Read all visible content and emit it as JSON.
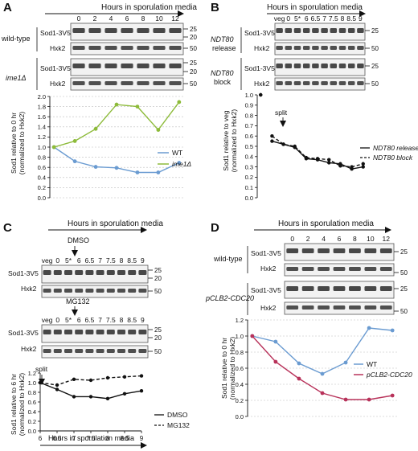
{
  "panels": [
    {
      "letter": "A",
      "header": "Hours in sporulation media",
      "lanes": [
        "0",
        "2",
        "4",
        "6",
        "8",
        "10",
        "12"
      ],
      "groups": [
        "wild-type",
        "ime1Δ"
      ],
      "blot_labels": [
        "Sod1-3V5",
        "Hxk2"
      ],
      "markers": [
        "25",
        "20",
        "50"
      ],
      "ylabel1": "Sod1 relative to 0 hr",
      "ylabel2": "(normalized to Hxk2)",
      "yticks": [
        "0.0",
        "0.2",
        "0.4",
        "0.6",
        "0.8",
        "1.0",
        "1.2",
        "1.4",
        "1.6",
        "1.8",
        "2.0"
      ],
      "legend": [
        "WT",
        "ime1Δ"
      ]
    },
    {
      "letter": "B",
      "header": "Hours in sporulation media",
      "lanes": [
        "veg",
        "0",
        "5*",
        "6",
        "6.5",
        "7",
        "7.5",
        "8",
        "8.5",
        "9"
      ],
      "groups": [
        "NDT80 release",
        "NDT80 block"
      ],
      "blot_labels": [
        "Sod1-3V5",
        "Hxk2"
      ],
      "markers": [
        "25",
        "50"
      ],
      "ylabel1": "Sod1 relative to veg",
      "ylabel2": "(normalized to Hxk2)",
      "yticks": [
        "0.0",
        "0.1",
        "0.2",
        "0.3",
        "0.4",
        "0.5",
        "0.6",
        "0.7",
        "0.8",
        "0.9",
        "1.0"
      ],
      "annotation": "split",
      "legend": [
        "NDT80 release",
        "NDT80 block"
      ]
    },
    {
      "letter": "C",
      "header": "Hours in sporulation media",
      "lanes": [
        "veg",
        "0",
        "5*",
        "6",
        "6.5",
        "7",
        "7.5",
        "8",
        "8.5",
        "9"
      ],
      "treatments": [
        "DMSO",
        "MG132"
      ],
      "blot_labels": [
        "Sod1-3V5",
        "Hxk2"
      ],
      "markers": [
        "25",
        "20",
        "50"
      ],
      "ylabel1": "Sod1 relative to 6 hr",
      "ylabel2": "(normalized to Hxk2)",
      "yticks": [
        "0.0",
        "0.2",
        "0.4",
        "0.6",
        "0.8",
        "1.0",
        "1.2"
      ],
      "xticks": [
        "6",
        "6.5",
        "7",
        "7.5",
        "8",
        "8.5",
        "9"
      ],
      "xlabel": "Hours in sporulation media",
      "annotation": "split",
      "legend": [
        "DMSO",
        "MG132"
      ]
    },
    {
      "letter": "D",
      "header": "Hours in sporulation media",
      "lanes": [
        "0",
        "2",
        "4",
        "6",
        "8",
        "10",
        "12"
      ],
      "groups": [
        "wild-type",
        "pCLB2-CDC20"
      ],
      "blot_labels": [
        "Sod1-3V5",
        "Hxk2"
      ],
      "markers": [
        "25",
        "50"
      ],
      "ylabel1": "Sod1 relative to 0 hr",
      "ylabel2": "(normalized to Hxk2)",
      "yticks": [
        "0.0",
        "0.2",
        "0.4",
        "0.6",
        "0.8",
        "1.0",
        "1.2"
      ],
      "legend": [
        "WT",
        "pCLB2-CDC20"
      ]
    }
  ],
  "chart_data": [
    {
      "type": "line",
      "panel": "A",
      "x": [
        0,
        2,
        4,
        6,
        8,
        10,
        12
      ],
      "series": [
        {
          "name": "WT",
          "values": [
            1.0,
            0.72,
            0.61,
            0.59,
            0.5,
            0.5,
            0.69
          ],
          "color": "#6a9bd1"
        },
        {
          "name": "ime1Δ",
          "values": [
            1.0,
            1.12,
            1.36,
            1.84,
            1.8,
            1.34,
            1.89
          ],
          "color": "#8dbb3a"
        }
      ],
      "ylim": [
        0,
        2.0
      ]
    },
    {
      "type": "line",
      "panel": "B",
      "categories": [
        "veg",
        "0",
        "5*",
        "6",
        "6.5",
        "7",
        "7.5",
        "8",
        "8.5",
        "9"
      ],
      "series": [
        {
          "name": "NDT80 release",
          "values": [
            1.0,
            0.55,
            0.52,
            0.49,
            0.38,
            0.37,
            0.34,
            0.33,
            0.28,
            0.3
          ],
          "style": "solid"
        },
        {
          "name": "NDT80 block",
          "values": [
            1.0,
            0.6,
            0.52,
            0.5,
            0.39,
            0.38,
            0.37,
            0.31,
            0.3,
            0.33
          ],
          "style": "dashed"
        }
      ],
      "ylim": [
        0,
        1.0
      ]
    },
    {
      "type": "line",
      "panel": "C",
      "x": [
        6,
        6.5,
        7,
        7.5,
        8,
        8.5,
        9
      ],
      "series": [
        {
          "name": "DMSO",
          "values": [
            1.0,
            0.86,
            0.71,
            0.71,
            0.67,
            0.77,
            0.83
          ],
          "style": "solid"
        },
        {
          "name": "MG132",
          "values": [
            1.0,
            0.95,
            1.07,
            1.05,
            1.1,
            1.12,
            1.14
          ],
          "style": "dashed"
        }
      ],
      "xlabel": "Hours in sporulation media",
      "ylim": [
        0,
        1.2
      ]
    },
    {
      "type": "line",
      "panel": "D",
      "x": [
        0,
        2,
        4,
        6,
        8,
        10,
        12
      ],
      "series": [
        {
          "name": "WT",
          "values": [
            1.0,
            0.93,
            0.66,
            0.53,
            0.67,
            1.1,
            1.07
          ],
          "color": "#6a9bd1"
        },
        {
          "name": "pCLB2-CDC20",
          "values": [
            1.0,
            0.68,
            0.47,
            0.29,
            0.21,
            0.21,
            0.26
          ],
          "color": "#b8325a"
        }
      ],
      "ylim": [
        0,
        1.2
      ]
    }
  ]
}
